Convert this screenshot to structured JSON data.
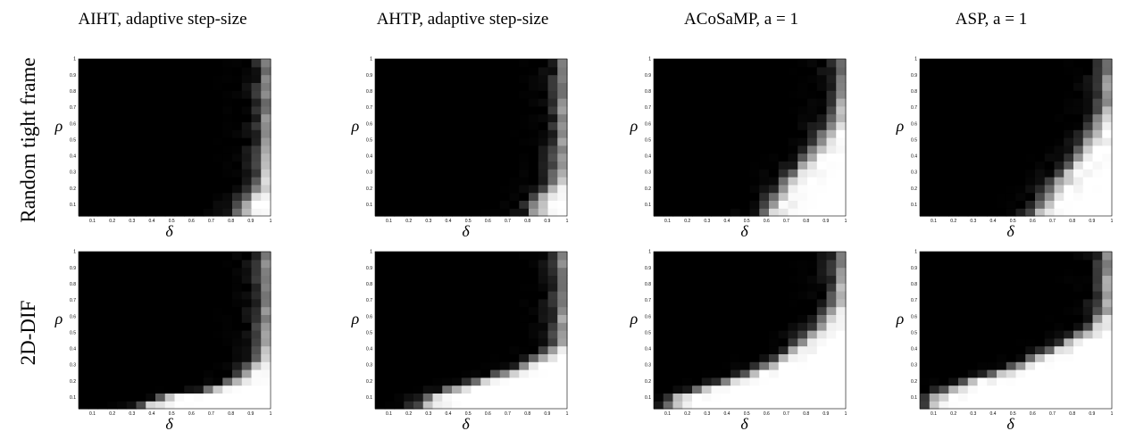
{
  "figure": {
    "column_titles": [
      "AIHT, adaptive step-size",
      "AHTP, adaptive step-size",
      "ACoSaMP, a = 1",
      "ASP, a = 1"
    ],
    "row_labels": [
      "Random tight frame",
      "2D-DIF"
    ]
  },
  "chart_data": {
    "type": "heatmap",
    "title": "",
    "xlabel": "δ",
    "ylabel": "ρ",
    "xlim": [
      0.03,
      1.0
    ],
    "ylim": [
      0.03,
      1.0
    ],
    "x_ticks": [
      "0.1",
      "0.2",
      "0.3",
      "0.4",
      "0.5",
      "0.6",
      "0.7",
      "0.8",
      "0.9",
      "1"
    ],
    "y_ticks": [
      "0.1",
      "0.2",
      "0.3",
      "0.4",
      "0.5",
      "0.6",
      "0.7",
      "0.8",
      "0.9",
      "1"
    ],
    "grid": false,
    "colormap": "grayscale (black = 0, white = 1)",
    "value_meaning": "empirical recovery rate per (δ, ρ) cell",
    "panels": [
      {
        "row": "Random tight frame",
        "column": "AIHT, adaptive step-size",
        "boundary": [
          [
            0.85,
            0.1
          ],
          [
            0.9,
            0.16
          ],
          [
            0.94,
            0.25
          ],
          [
            0.96,
            0.35
          ],
          [
            0.97,
            0.5
          ],
          [
            0.98,
            1.0
          ]
        ]
      },
      {
        "row": "Random tight frame",
        "column": "AHTP, adaptive step-size",
        "boundary": [
          [
            0.83,
            0.1
          ],
          [
            0.88,
            0.17
          ],
          [
            0.93,
            0.25
          ],
          [
            0.96,
            0.35
          ],
          [
            0.97,
            0.55
          ],
          [
            0.98,
            1.0
          ]
        ]
      },
      {
        "row": "Random tight frame",
        "column": "ACoSaMP, a = 1",
        "boundary": [
          [
            0.58,
            0.03
          ],
          [
            0.62,
            0.1
          ],
          [
            0.66,
            0.18
          ],
          [
            0.72,
            0.27
          ],
          [
            0.8,
            0.38
          ],
          [
            0.88,
            0.52
          ],
          [
            0.95,
            0.65
          ],
          [
            0.97,
            0.85
          ],
          [
            0.98,
            1.0
          ]
        ]
      },
      {
        "row": "Random tight frame",
        "column": "ASP, a = 1",
        "boundary": [
          [
            0.58,
            0.03
          ],
          [
            0.64,
            0.1
          ],
          [
            0.7,
            0.2
          ],
          [
            0.77,
            0.32
          ],
          [
            0.85,
            0.45
          ],
          [
            0.92,
            0.58
          ],
          [
            0.96,
            0.72
          ],
          [
            0.97,
            0.88
          ],
          [
            0.98,
            1.0
          ]
        ]
      },
      {
        "row": "2D-DIF",
        "column": "AIHT, adaptive step-size",
        "boundary": [
          [
            0.35,
            0.03
          ],
          [
            0.38,
            0.08
          ],
          [
            0.5,
            0.11
          ],
          [
            0.65,
            0.14
          ],
          [
            0.8,
            0.2
          ],
          [
            0.9,
            0.28
          ],
          [
            0.96,
            0.4
          ],
          [
            0.98,
            1.0
          ]
        ]
      },
      {
        "row": "2D-DIF",
        "column": "AHTP, adaptive step-size",
        "boundary": [
          [
            0.25,
            0.03
          ],
          [
            0.3,
            0.1
          ],
          [
            0.45,
            0.17
          ],
          [
            0.6,
            0.22
          ],
          [
            0.75,
            0.28
          ],
          [
            0.88,
            0.36
          ],
          [
            0.96,
            0.45
          ],
          [
            0.98,
            1.0
          ]
        ]
      },
      {
        "row": "2D-DIF",
        "column": "ACoSaMP, a = 1",
        "boundary": [
          [
            0.1,
            0.03
          ],
          [
            0.12,
            0.1
          ],
          [
            0.3,
            0.17
          ],
          [
            0.5,
            0.24
          ],
          [
            0.65,
            0.33
          ],
          [
            0.78,
            0.45
          ],
          [
            0.88,
            0.57
          ],
          [
            0.95,
            0.7
          ],
          [
            0.98,
            1.0
          ]
        ]
      },
      {
        "row": "2D-DIF",
        "column": "ASP, a = 1",
        "boundary": [
          [
            0.08,
            0.05
          ],
          [
            0.1,
            0.12
          ],
          [
            0.28,
            0.2
          ],
          [
            0.45,
            0.26
          ],
          [
            0.6,
            0.34
          ],
          [
            0.75,
            0.43
          ],
          [
            0.88,
            0.52
          ],
          [
            0.95,
            0.62
          ],
          [
            0.98,
            1.0
          ]
        ]
      }
    ]
  }
}
